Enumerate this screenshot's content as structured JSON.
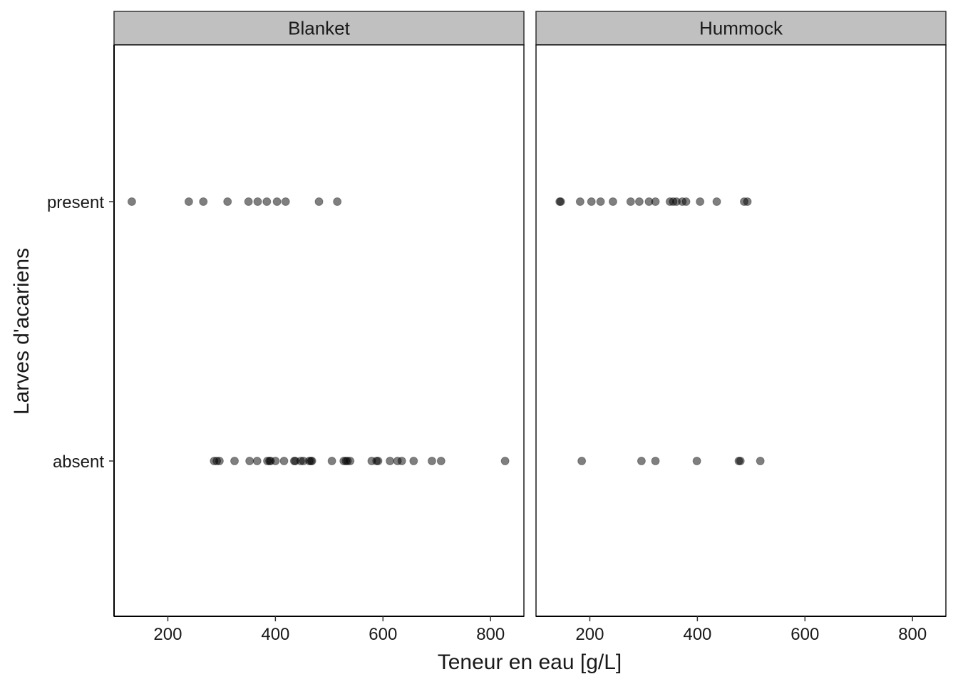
{
  "chart_data": {
    "type": "scatter",
    "x_label": "Teneur en eau [g/L]",
    "y_label": "Larves d'acariens",
    "y_categories": [
      "absent",
      "present"
    ],
    "x_ticks": [
      200,
      400,
      600,
      800
    ],
    "x_range": [
      100,
      862
    ],
    "point_color": "#000000",
    "point_opacity": 0.5,
    "strip_fill": "#c0c0c0",
    "facets": [
      {
        "name": "Blanket",
        "points": [
          {
            "x": 133,
            "y": "present"
          },
          {
            "x": 239,
            "y": "present"
          },
          {
            "x": 266,
            "y": "present"
          },
          {
            "x": 311,
            "y": "present"
          },
          {
            "x": 350,
            "y": "present"
          },
          {
            "x": 367,
            "y": "present"
          },
          {
            "x": 384,
            "y": "present"
          },
          {
            "x": 403,
            "y": "present"
          },
          {
            "x": 419,
            "y": "present"
          },
          {
            "x": 481,
            "y": "present"
          },
          {
            "x": 515,
            "y": "present"
          },
          {
            "x": 286,
            "y": "absent"
          },
          {
            "x": 291,
            "y": "absent"
          },
          {
            "x": 296,
            "y": "absent"
          },
          {
            "x": 324,
            "y": "absent"
          },
          {
            "x": 352,
            "y": "absent"
          },
          {
            "x": 366,
            "y": "absent"
          },
          {
            "x": 385,
            "y": "absent"
          },
          {
            "x": 389,
            "y": "absent"
          },
          {
            "x": 391,
            "y": "absent"
          },
          {
            "x": 400,
            "y": "absent"
          },
          {
            "x": 416,
            "y": "absent"
          },
          {
            "x": 435,
            "y": "absent"
          },
          {
            "x": 437,
            "y": "absent"
          },
          {
            "x": 447,
            "y": "absent"
          },
          {
            "x": 452,
            "y": "absent"
          },
          {
            "x": 463,
            "y": "absent"
          },
          {
            "x": 466,
            "y": "absent"
          },
          {
            "x": 468,
            "y": "absent"
          },
          {
            "x": 505,
            "y": "absent"
          },
          {
            "x": 527,
            "y": "absent"
          },
          {
            "x": 531,
            "y": "absent"
          },
          {
            "x": 534,
            "y": "absent"
          },
          {
            "x": 539,
            "y": "absent"
          },
          {
            "x": 579,
            "y": "absent"
          },
          {
            "x": 588,
            "y": "absent"
          },
          {
            "x": 591,
            "y": "absent"
          },
          {
            "x": 613,
            "y": "absent"
          },
          {
            "x": 627,
            "y": "absent"
          },
          {
            "x": 635,
            "y": "absent"
          },
          {
            "x": 657,
            "y": "absent"
          },
          {
            "x": 691,
            "y": "absent"
          },
          {
            "x": 708,
            "y": "absent"
          },
          {
            "x": 827,
            "y": "absent"
          }
        ]
      },
      {
        "name": "Hummock",
        "points": [
          {
            "x": 144,
            "y": "present"
          },
          {
            "x": 146,
            "y": "present"
          },
          {
            "x": 182,
            "y": "present"
          },
          {
            "x": 203,
            "y": "present"
          },
          {
            "x": 220,
            "y": "present"
          },
          {
            "x": 243,
            "y": "present"
          },
          {
            "x": 276,
            "y": "present"
          },
          {
            "x": 292,
            "y": "present"
          },
          {
            "x": 310,
            "y": "present"
          },
          {
            "x": 322,
            "y": "present"
          },
          {
            "x": 349,
            "y": "present"
          },
          {
            "x": 355,
            "y": "present"
          },
          {
            "x": 361,
            "y": "present"
          },
          {
            "x": 372,
            "y": "present"
          },
          {
            "x": 379,
            "y": "present"
          },
          {
            "x": 405,
            "y": "present"
          },
          {
            "x": 436,
            "y": "present"
          },
          {
            "x": 487,
            "y": "present"
          },
          {
            "x": 493,
            "y": "present"
          },
          {
            "x": 185,
            "y": "absent"
          },
          {
            "x": 296,
            "y": "absent"
          },
          {
            "x": 322,
            "y": "absent"
          },
          {
            "x": 399,
            "y": "absent"
          },
          {
            "x": 477,
            "y": "absent"
          },
          {
            "x": 480,
            "y": "absent"
          },
          {
            "x": 517,
            "y": "absent"
          }
        ]
      }
    ]
  }
}
